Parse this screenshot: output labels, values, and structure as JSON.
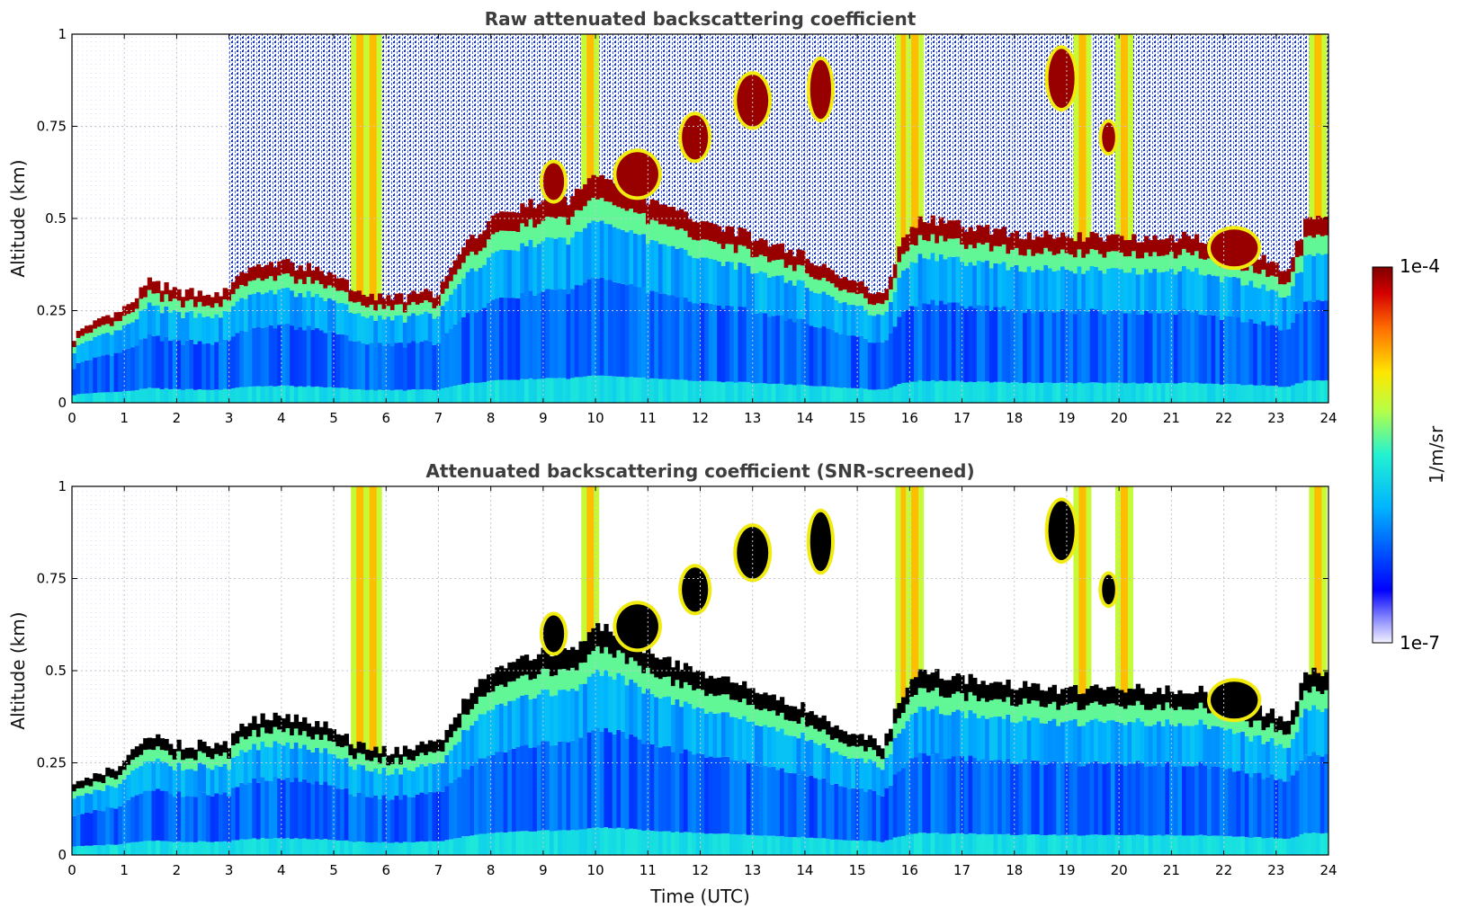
{
  "chart_data": [
    {
      "type": "heatmap",
      "title": "Raw attenuated backscattering coefficient",
      "ylabel": "Altitude (km)",
      "xlabel": "",
      "xlim": [
        0,
        24
      ],
      "ylim": [
        0,
        1
      ],
      "xticks": [
        "0",
        "1",
        "2",
        "3",
        "4",
        "5",
        "6",
        "7",
        "8",
        "9",
        "10",
        "11",
        "12",
        "13",
        "14",
        "15",
        "16",
        "17",
        "18",
        "19",
        "20",
        "21",
        "22",
        "23",
        "24"
      ],
      "yticks": [
        "0",
        "0.25",
        "0.5",
        "0.75",
        "1"
      ],
      "grid": true,
      "screened": false
    },
    {
      "type": "heatmap",
      "title": "Attenuated backscattering coefficient (SNR-screened)",
      "ylabel": "Altitude (km)",
      "xlabel": "Time (UTC)",
      "xlim": [
        0,
        24
      ],
      "ylim": [
        0,
        1
      ],
      "xticks": [
        "0",
        "1",
        "2",
        "3",
        "4",
        "5",
        "6",
        "7",
        "8",
        "9",
        "10",
        "11",
        "12",
        "13",
        "14",
        "15",
        "16",
        "17",
        "18",
        "19",
        "20",
        "21",
        "22",
        "23",
        "24"
      ],
      "yticks": [
        "0",
        "0.25",
        "0.5",
        "0.75",
        "1"
      ],
      "grid": true,
      "screened": true
    }
  ],
  "colorbar": {
    "max_label": "1e-4",
    "min_label": "1e-7",
    "label": "1/m/sr",
    "colormap": "jet",
    "scale": "log"
  },
  "layer_profile": {
    "time_utc": [
      0,
      1,
      1.5,
      2,
      3,
      3.3,
      4,
      5,
      5.4,
      6,
      7,
      7.5,
      8,
      9,
      9.5,
      10,
      10.5,
      11,
      11.5,
      12,
      13,
      14,
      15,
      15.5,
      15.9,
      16.2,
      17,
      18,
      19,
      20,
      21,
      21.5,
      22,
      23,
      23.2,
      23.6,
      24
    ],
    "layer_top_km": [
      0.18,
      0.25,
      0.33,
      0.3,
      0.3,
      0.36,
      0.38,
      0.35,
      0.3,
      0.28,
      0.3,
      0.42,
      0.5,
      0.55,
      0.55,
      0.62,
      0.6,
      0.55,
      0.52,
      0.5,
      0.45,
      0.4,
      0.32,
      0.3,
      0.45,
      0.5,
      0.48,
      0.46,
      0.45,
      0.45,
      0.45,
      0.45,
      0.42,
      0.38,
      0.35,
      0.5,
      0.5
    ]
  },
  "vertical_bands_utc": [
    5.5,
    5.75,
    9.9,
    15.9,
    16.1,
    19.3,
    20.1,
    23.8
  ],
  "colors": {
    "frame": "#000000",
    "grid": "#c8c8c8",
    "title_text": "#3d3d3d",
    "screened_saturation": "#000000"
  }
}
